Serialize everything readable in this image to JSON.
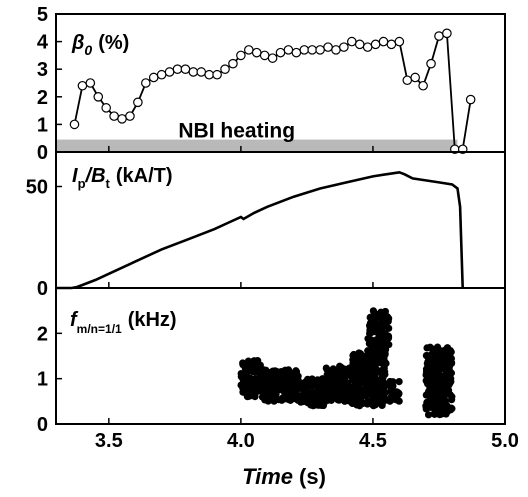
{
  "figure": {
    "xlabel": "Time",
    "xlabel_unit": "(s)"
  },
  "chart_data": [
    {
      "type": "line",
      "panel": "beta",
      "label_sym": "β",
      "label_sub": "0",
      "label_unit": "(%)",
      "xlim": [
        3.3,
        5.0
      ],
      "ylim": [
        0,
        5
      ],
      "yticks": [
        0,
        1,
        2,
        3,
        4,
        5
      ],
      "band": {
        "label": "NBI heating",
        "x_start": 3.3,
        "x_end": 4.82,
        "y_start": 0,
        "y_end": 0.45,
        "color": "#b9b9b9"
      },
      "series": [
        {
          "marker": "open-circle",
          "x": [
            3.37,
            3.4,
            3.43,
            3.46,
            3.49,
            3.52,
            3.55,
            3.58,
            3.61,
            3.64,
            3.67,
            3.7,
            3.73,
            3.76,
            3.79,
            3.82,
            3.85,
            3.88,
            3.91,
            3.94,
            3.97,
            4.0,
            4.03,
            4.06,
            4.09,
            4.12,
            4.15,
            4.18,
            4.21,
            4.24,
            4.27,
            4.3,
            4.33,
            4.36,
            4.39,
            4.42,
            4.45,
            4.48,
            4.51,
            4.54,
            4.57,
            4.6,
            4.63,
            4.66,
            4.69,
            4.72,
            4.75,
            4.78,
            4.81,
            4.84,
            4.87
          ],
          "values": [
            1.0,
            2.4,
            2.5,
            2.0,
            1.6,
            1.3,
            1.2,
            1.3,
            1.8,
            2.5,
            2.7,
            2.8,
            2.9,
            3.0,
            3.0,
            2.9,
            2.9,
            2.8,
            2.8,
            3.0,
            3.2,
            3.5,
            3.7,
            3.6,
            3.5,
            3.4,
            3.6,
            3.7,
            3.6,
            3.7,
            3.7,
            3.7,
            3.8,
            3.7,
            3.8,
            4.0,
            3.9,
            3.8,
            3.9,
            4.0,
            3.9,
            4.0,
            2.6,
            2.7,
            2.4,
            3.2,
            4.2,
            4.3,
            0.1,
            0.1,
            1.9
          ]
        }
      ]
    },
    {
      "type": "line",
      "panel": "current",
      "label_sym": "I",
      "label_sub": "p",
      "label_slash": "/B",
      "label_sub2": "t",
      "label_unit": "(kA/T)",
      "xlim": [
        3.3,
        5.0
      ],
      "ylim": [
        0,
        67
      ],
      "yticks": [
        0,
        50
      ],
      "series": [
        {
          "x": [
            3.3,
            3.36,
            3.38,
            3.4,
            3.45,
            3.5,
            3.6,
            3.7,
            3.8,
            3.9,
            3.95,
            4.0,
            4.01,
            4.05,
            4.1,
            4.2,
            4.3,
            4.4,
            4.5,
            4.55,
            4.6,
            4.62,
            4.65,
            4.7,
            4.75,
            4.8,
            4.82,
            4.83,
            4.835,
            4.84
          ],
          "values": [
            0,
            0,
            0.5,
            1.5,
            4,
            7,
            13,
            19,
            24,
            29,
            32,
            35,
            34,
            37,
            40,
            45,
            49,
            52,
            55,
            56,
            57,
            56,
            54,
            53,
            52,
            51,
            49,
            40,
            20,
            0
          ]
        }
      ]
    },
    {
      "type": "scatter",
      "panel": "mode",
      "label_sym": "f",
      "label_sub": "m/n=1/1",
      "label_unit": "(kHz)",
      "xlim": [
        3.3,
        5.0
      ],
      "ylim": [
        0,
        3.0
      ],
      "yticks": [
        0,
        1,
        2
      ],
      "xticks": [
        "3.5",
        "4.0",
        "4.5",
        "5.0"
      ],
      "xtick_values": [
        3.5,
        4.0,
        4.5,
        5.0
      ],
      "clusters": [
        {
          "x_range": [
            4.0,
            4.08
          ],
          "y_range": [
            0.6,
            1.4
          ]
        },
        {
          "x_range": [
            4.08,
            4.22
          ],
          "y_range": [
            0.5,
            1.2
          ]
        },
        {
          "x_range": [
            4.22,
            4.32
          ],
          "y_range": [
            0.4,
            1.0
          ]
        },
        {
          "x_range": [
            4.32,
            4.42
          ],
          "y_range": [
            0.5,
            1.3
          ]
        },
        {
          "x_range": [
            4.42,
            4.55
          ],
          "y_range": [
            0.4,
            1.6
          ]
        },
        {
          "x_range": [
            4.48,
            4.56
          ],
          "y_range": [
            1.6,
            2.5
          ]
        },
        {
          "x_range": [
            4.56,
            4.6
          ],
          "y_range": [
            0.5,
            1.0
          ]
        },
        {
          "x_range": [
            4.7,
            4.8
          ],
          "y_range": [
            0.2,
            1.7
          ]
        }
      ]
    }
  ]
}
